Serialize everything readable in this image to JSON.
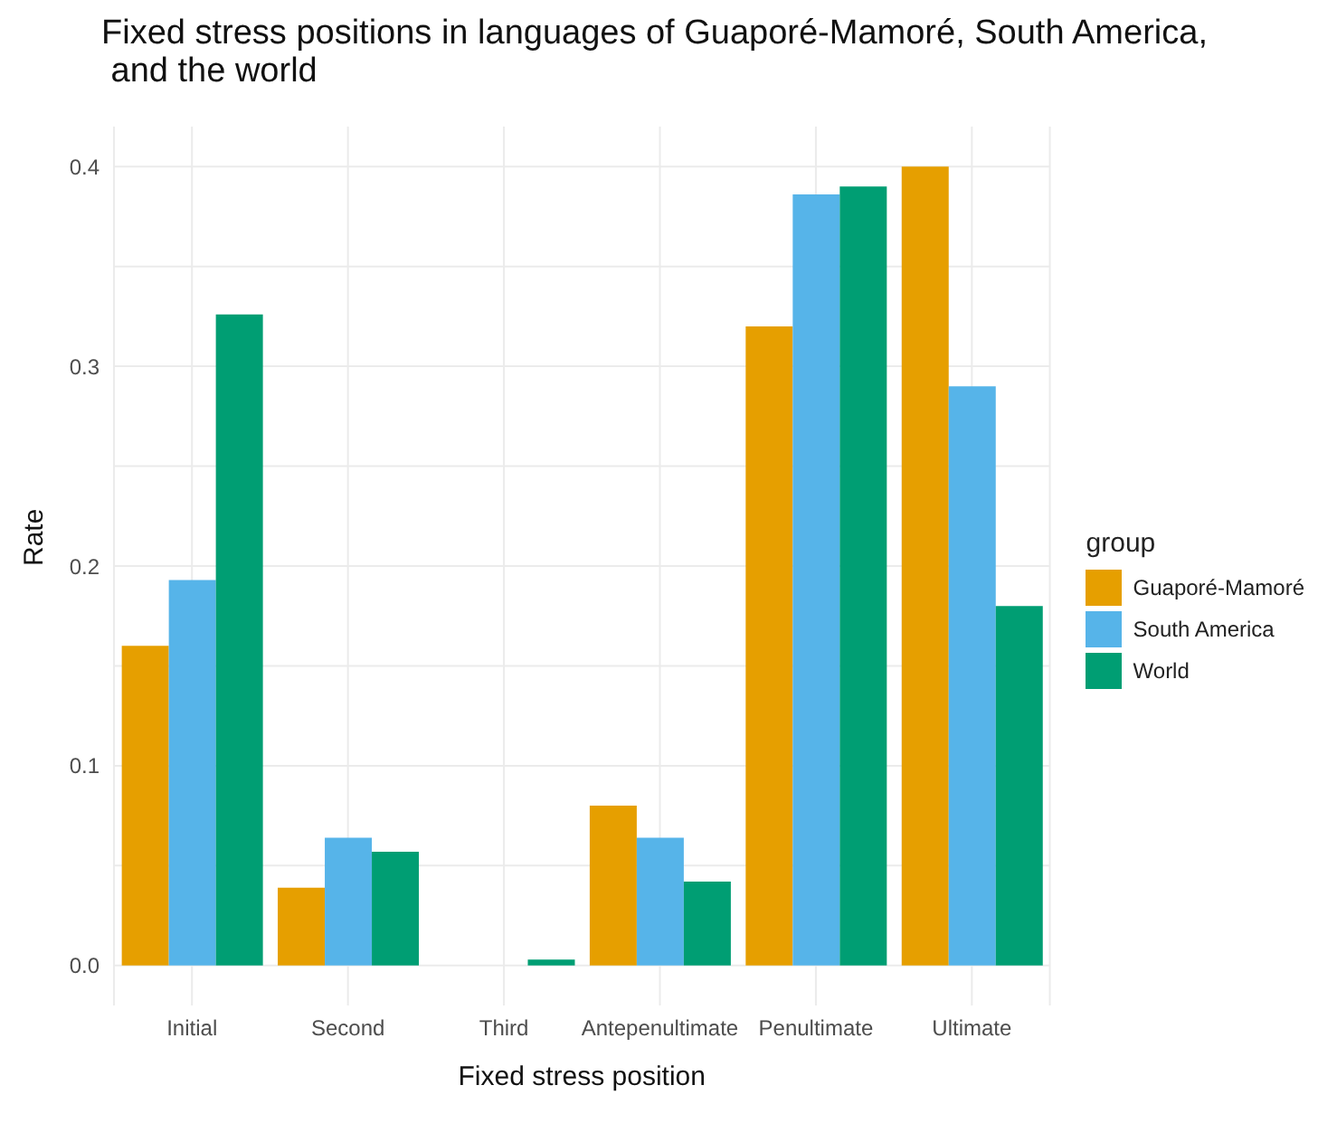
{
  "chart_data": {
    "type": "bar",
    "title": "Fixed stress positions in languages of Guaporé-Mamoré, South America,\n and the world",
    "xlabel": "Fixed stress position",
    "ylabel": "Rate",
    "legend_title": "group",
    "categories": [
      "Initial",
      "Second",
      "Third",
      "Antepenultimate",
      "Penultimate",
      "Ultimate"
    ],
    "series": [
      {
        "name": "Guaporé-Mamoré",
        "color": "#e69f00",
        "values": [
          0.16,
          0.039,
          null,
          0.08,
          0.32,
          0.4
        ]
      },
      {
        "name": "South America",
        "color": "#56b4e9",
        "values": [
          0.193,
          0.064,
          null,
          0.064,
          0.386,
          0.29
        ]
      },
      {
        "name": "World",
        "color": "#009e73",
        "values": [
          0.326,
          0.057,
          0.003,
          0.042,
          0.39,
          0.18
        ]
      }
    ],
    "ylim": [
      -0.02,
      0.42
    ],
    "yticks": [
      {
        "value": 0,
        "label": "0.0"
      },
      0.1,
      0.2,
      0.3,
      0.4
    ],
    "grid": true,
    "legend": "right"
  }
}
